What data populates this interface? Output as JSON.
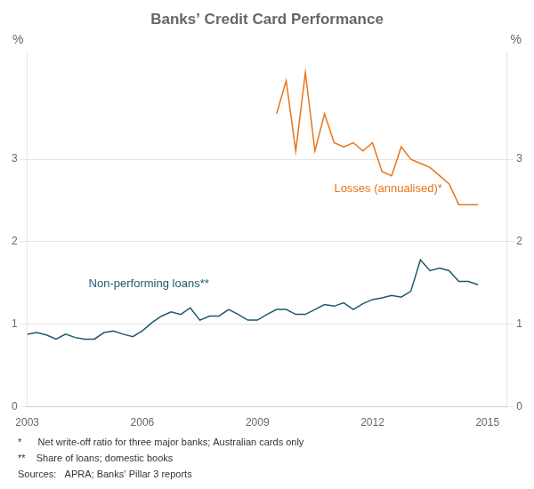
{
  "chart_data": {
    "type": "line",
    "title": "Banks’ Credit Card Performance",
    "ylabel": "%",
    "y2label": "%",
    "xlim": [
      2003.0,
      2015.5
    ],
    "xticks": [
      2003,
      2006,
      2009,
      2012,
      2015
    ],
    "ylim": [
      0,
      4.3
    ],
    "yticks": [
      0,
      1,
      2,
      3
    ],
    "y2lim": [
      0,
      4.3
    ],
    "y2ticks": [
      0,
      1,
      2,
      3
    ],
    "grid": true,
    "annotations": [
      "*      Net write-off ratio for three major banks; Australian cards only",
      "**    Share of loans; domestic books",
      "Sources:   APRA; Banks’ Pillar 3 reports"
    ],
    "series": [
      {
        "name": "Losses (annualised)*",
        "color": "#E8751A",
        "x": [
          2009.5,
          2009.75,
          2010.0,
          2010.25,
          2010.5,
          2010.75,
          2011.0,
          2011.25,
          2011.5,
          2011.75,
          2012.0,
          2012.25,
          2012.5,
          2012.75,
          2013.0,
          2013.25,
          2013.5,
          2013.75,
          2014.0,
          2014.25,
          2014.5,
          2014.75
        ],
        "values": [
          3.55,
          3.95,
          3.1,
          4.05,
          3.1,
          3.55,
          3.2,
          3.15,
          3.2,
          3.1,
          3.2,
          2.85,
          2.8,
          3.15,
          3.0,
          2.95,
          2.9,
          2.8,
          2.7,
          2.45,
          2.45,
          2.45
        ]
      },
      {
        "name": "Non-performing loans**",
        "color": "#1B5A6E",
        "x": [
          2003.0,
          2003.25,
          2003.5,
          2003.75,
          2004.0,
          2004.25,
          2004.5,
          2004.75,
          2005.0,
          2005.25,
          2005.5,
          2005.75,
          2006.0,
          2006.25,
          2006.5,
          2006.75,
          2007.0,
          2007.25,
          2007.5,
          2007.75,
          2008.0,
          2008.25,
          2008.5,
          2008.75,
          2009.0,
          2009.25,
          2009.5,
          2009.75,
          2010.0,
          2010.25,
          2010.5,
          2010.75,
          2011.0,
          2011.25,
          2011.5,
          2011.75,
          2012.0,
          2012.25,
          2012.5,
          2012.75,
          2013.0,
          2013.25,
          2013.5,
          2013.75,
          2014.0,
          2014.25,
          2014.5,
          2014.75
        ],
        "values": [
          0.88,
          0.9,
          0.87,
          0.82,
          0.88,
          0.84,
          0.82,
          0.82,
          0.9,
          0.92,
          0.88,
          0.85,
          0.92,
          1.02,
          1.1,
          1.15,
          1.12,
          1.2,
          1.05,
          1.1,
          1.1,
          1.18,
          1.12,
          1.05,
          1.05,
          1.12,
          1.18,
          1.18,
          1.12,
          1.12,
          1.18,
          1.24,
          1.22,
          1.26,
          1.18,
          1.25,
          1.3,
          1.32,
          1.35,
          1.33,
          1.4,
          1.78,
          1.65,
          1.68,
          1.65,
          1.52,
          1.52,
          1.48
        ]
      }
    ]
  }
}
